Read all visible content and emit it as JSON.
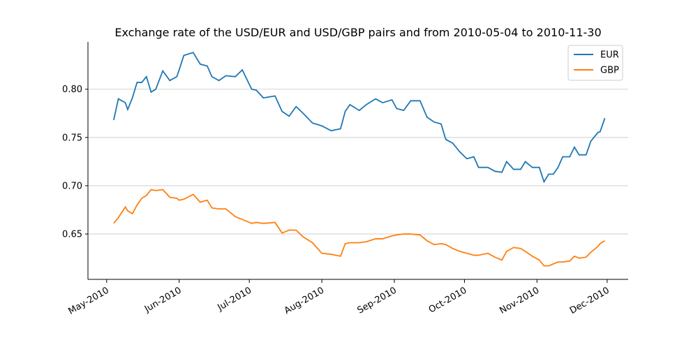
{
  "chart_data": {
    "type": "line",
    "title": "Exchange rate of the USD/EUR and USD/GBP pairs and from 2010-05-04 to 2010-11-30",
    "x": [
      "2010-05-04",
      "2010-05-06",
      "2010-05-09",
      "2010-05-10",
      "2010-05-12",
      "2010-05-14",
      "2010-05-16",
      "2010-05-18",
      "2010-05-20",
      "2010-05-22",
      "2010-05-25",
      "2010-05-28",
      "2010-05-31",
      "2010-06-01",
      "2010-06-03",
      "2010-06-07",
      "2010-06-10",
      "2010-06-13",
      "2010-06-15",
      "2010-06-18",
      "2010-06-21",
      "2010-06-25",
      "2010-06-28",
      "2010-07-02",
      "2010-07-04",
      "2010-07-07",
      "2010-07-12",
      "2010-07-15",
      "2010-07-18",
      "2010-07-21",
      "2010-07-24",
      "2010-07-28",
      "2010-08-01",
      "2010-08-05",
      "2010-08-09",
      "2010-08-11",
      "2010-08-13",
      "2010-08-17",
      "2010-08-20",
      "2010-08-24",
      "2010-08-27",
      "2010-08-31",
      "2010-09-02",
      "2010-09-05",
      "2010-09-08",
      "2010-09-12",
      "2010-09-15",
      "2010-09-18",
      "2010-09-21",
      "2010-09-23",
      "2010-09-26",
      "2010-09-29",
      "2010-10-02",
      "2010-10-05",
      "2010-10-07",
      "2010-10-11",
      "2010-10-14",
      "2010-10-17",
      "2010-10-19",
      "2010-10-22",
      "2010-10-25",
      "2010-10-27",
      "2010-10-30",
      "2010-11-02",
      "2010-11-04",
      "2010-11-06",
      "2010-11-08",
      "2010-11-10",
      "2010-11-12",
      "2010-11-15",
      "2010-11-17",
      "2010-11-19",
      "2010-11-22",
      "2010-11-24",
      "2010-11-27",
      "2010-11-28",
      "2010-11-30"
    ],
    "series": [
      {
        "name": "EUR",
        "color": "#1f77b4",
        "values": [
          0.768,
          0.79,
          0.786,
          0.779,
          0.791,
          0.807,
          0.807,
          0.813,
          0.797,
          0.8,
          0.819,
          0.809,
          0.813,
          0.82,
          0.835,
          0.838,
          0.826,
          0.824,
          0.813,
          0.809,
          0.814,
          0.813,
          0.82,
          0.8,
          0.799,
          0.791,
          0.793,
          0.777,
          0.772,
          0.782,
          0.775,
          0.765,
          0.762,
          0.757,
          0.759,
          0.777,
          0.784,
          0.778,
          0.784,
          0.79,
          0.786,
          0.789,
          0.78,
          0.778,
          0.788,
          0.788,
          0.771,
          0.766,
          0.764,
          0.748,
          0.744,
          0.735,
          0.728,
          0.73,
          0.719,
          0.719,
          0.715,
          0.714,
          0.725,
          0.717,
          0.717,
          0.725,
          0.719,
          0.719,
          0.704,
          0.712,
          0.712,
          0.719,
          0.73,
          0.73,
          0.74,
          0.732,
          0.732,
          0.746,
          0.755,
          0.756,
          0.77
        ]
      },
      {
        "name": "GBP",
        "color": "#ff7f0e",
        "values": [
          0.661,
          0.667,
          0.678,
          0.674,
          0.671,
          0.68,
          0.687,
          0.69,
          0.696,
          0.695,
          0.696,
          0.688,
          0.687,
          0.685,
          0.686,
          0.691,
          0.683,
          0.685,
          0.677,
          0.676,
          0.676,
          0.668,
          0.665,
          0.661,
          0.662,
          0.661,
          0.662,
          0.651,
          0.654,
          0.654,
          0.647,
          0.641,
          0.63,
          0.629,
          0.627,
          0.64,
          0.641,
          0.641,
          0.642,
          0.645,
          0.645,
          0.648,
          0.649,
          0.65,
          0.65,
          0.649,
          0.643,
          0.639,
          0.64,
          0.639,
          0.635,
          0.632,
          0.63,
          0.628,
          0.628,
          0.63,
          0.626,
          0.623,
          0.632,
          0.636,
          0.635,
          0.632,
          0.627,
          0.623,
          0.617,
          0.617,
          0.619,
          0.621,
          0.621,
          0.622,
          0.627,
          0.625,
          0.626,
          0.631,
          0.637,
          0.64,
          0.643
        ]
      }
    ],
    "xlim": [
      "2010-04-23",
      "2010-12-10"
    ],
    "xticks": [
      {
        "value": "2010-05-01",
        "label": "May-2010"
      },
      {
        "value": "2010-06-01",
        "label": "Jun-2010"
      },
      {
        "value": "2010-07-01",
        "label": "Jul-2010"
      },
      {
        "value": "2010-08-01",
        "label": "Aug-2010"
      },
      {
        "value": "2010-09-01",
        "label": "Sep-2010"
      },
      {
        "value": "2010-10-01",
        "label": "Oct-2010"
      },
      {
        "value": "2010-11-01",
        "label": "Nov-2010"
      },
      {
        "value": "2010-12-01",
        "label": "Dec-2010"
      }
    ],
    "ylim": [
      0.603,
      0.849
    ],
    "yticks": [
      0.65,
      {
        "value": 0.7,
        "label": "0.70"
      },
      0.75,
      {
        "value": 0.8,
        "label": "0.80"
      }
    ],
    "grid": "y",
    "legend": "upper right"
  }
}
